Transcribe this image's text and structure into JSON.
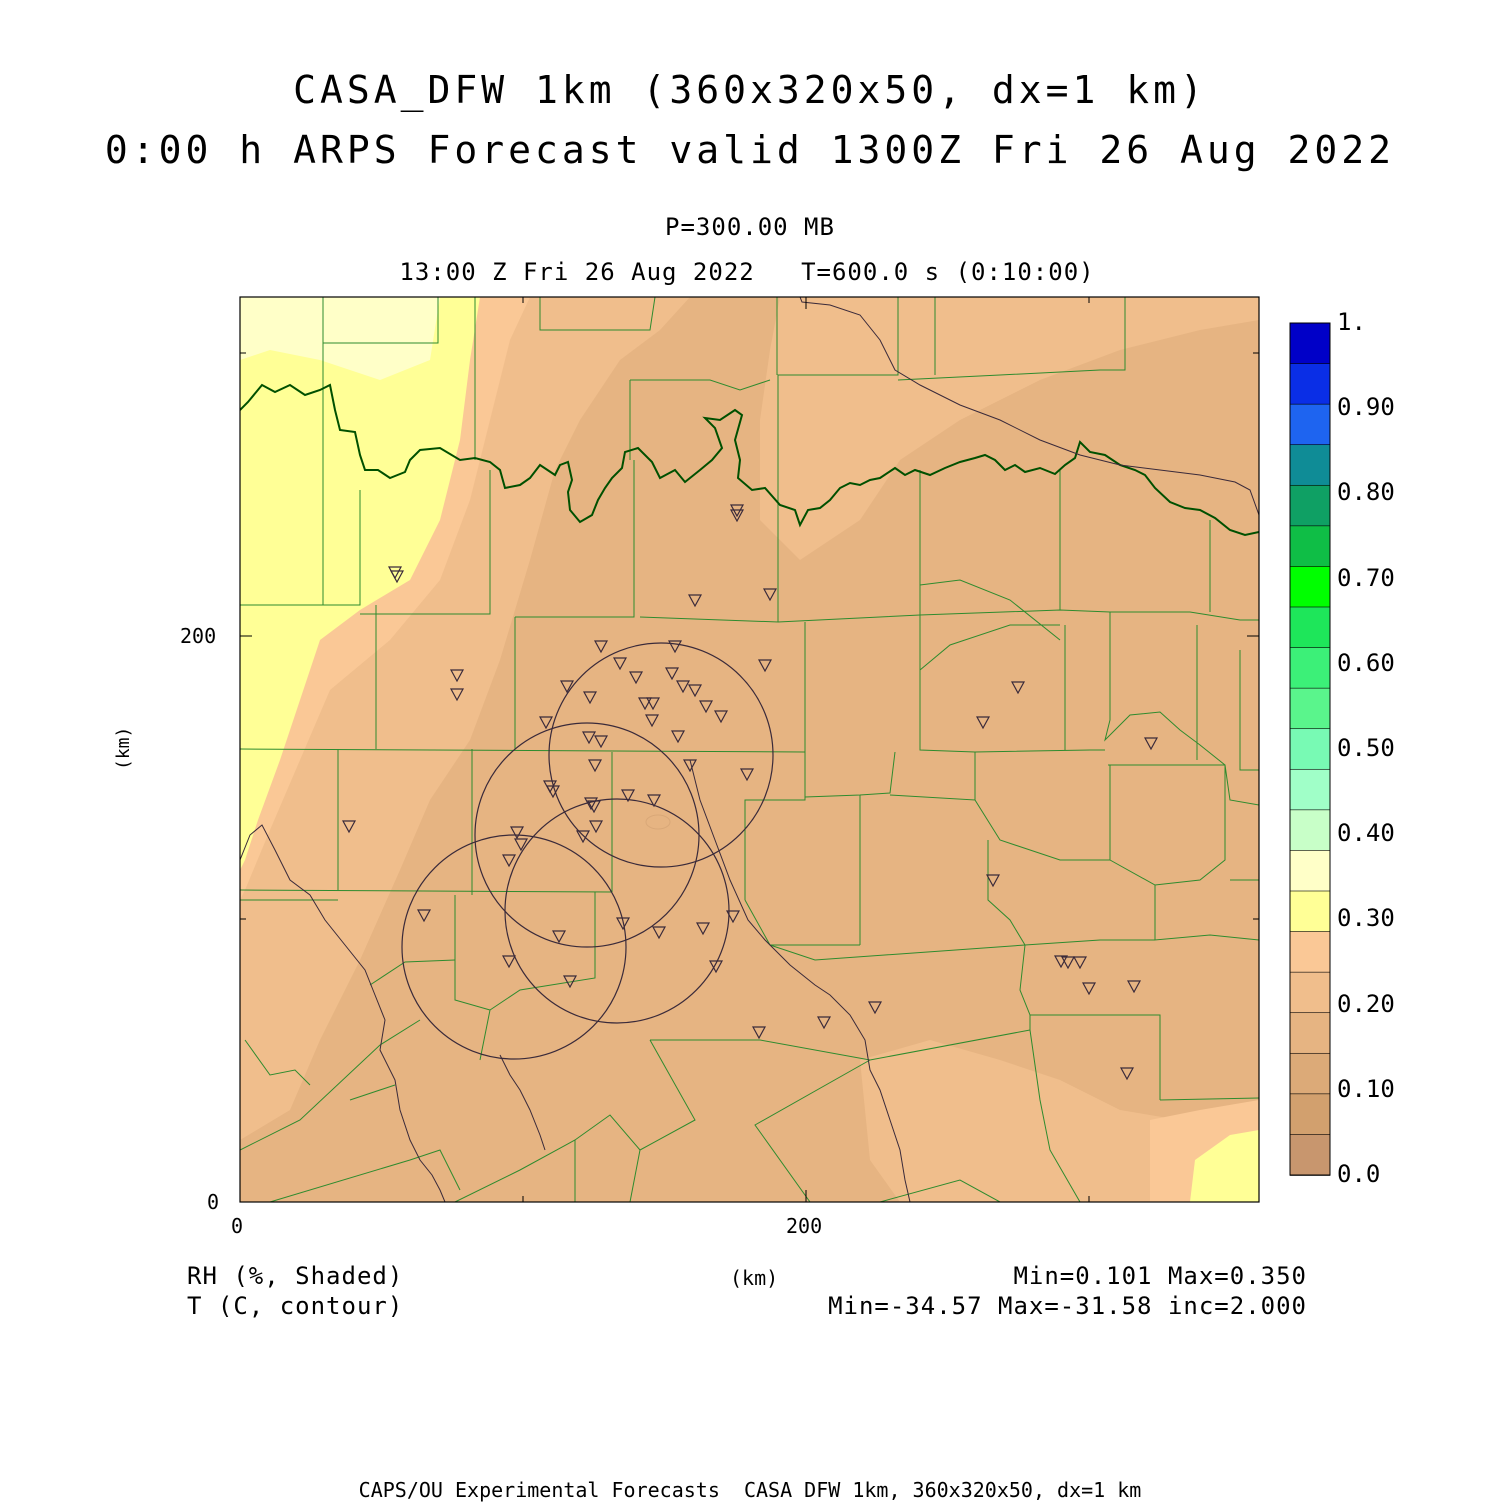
{
  "title": {
    "line1": "CASA_DFW 1km (360x320x50, dx=1 km)",
    "line2": "0:00 h ARPS Forecast valid 1300Z Fri 26 Aug 2022"
  },
  "level": "P=300.00 MB",
  "time_line": "13:00 Z Fri 26 Aug 2022   T=600.0 s (0:10:00)",
  "axes": {
    "x_unit": "(km)",
    "y_unit": "(km)",
    "x_ticks": [
      "0",
      "200"
    ],
    "y_ticks": [
      "0",
      "200"
    ]
  },
  "colorbar": {
    "labels": [
      "1.",
      "0.90",
      "0.80",
      "0.70",
      "0.60",
      "0.50",
      "0.40",
      "0.30",
      "0.20",
      "0.10",
      "0.0"
    ],
    "colors": [
      "#0000c8",
      "#0a2ee6",
      "#1e64f0",
      "#0f8c96",
      "#0fa064",
      "#0fbe46",
      "#00ff00",
      "#1ee65a",
      "#3cf078",
      "#5af58c",
      "#78fab4",
      "#a0ffc8",
      "#c8ffc8",
      "#ffffc8",
      "#ffff96",
      "#fac896",
      "#f0be8c",
      "#e6b482",
      "#dcaa78",
      "#d2a06e",
      "#c8966e"
    ]
  },
  "legend": {
    "field1": "RH (%, Shaded)",
    "field2": "T (C, contour)",
    "stats1": "Min=0.101 Max=0.350",
    "stats2": "Min=-34.57 Max=-31.58 inc=2.000"
  },
  "footer": "CAPS/OU Experimental Forecasts  CASA DFW 1km, 360x320x50, dx=1 km",
  "colors": {
    "county_lines": "#2e8b2e",
    "state_border": "#005000",
    "river": "#3a2a3a",
    "radar_rings": "#3a2a3a",
    "station_marker": "#3a2a3a"
  }
}
